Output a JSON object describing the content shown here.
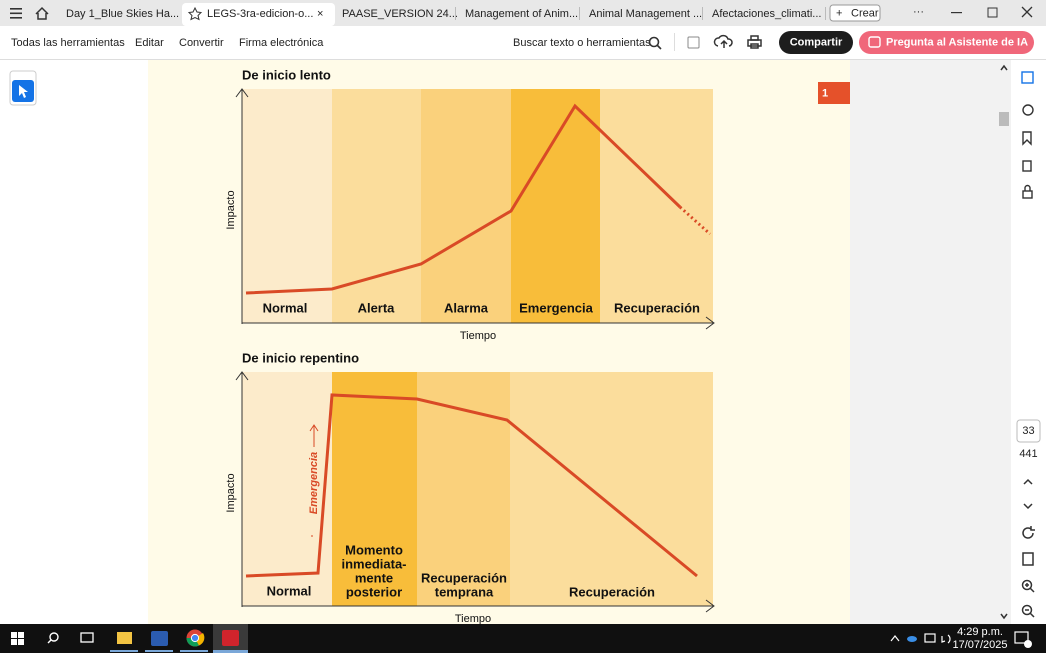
{
  "tabs": [
    "Day 1_Blue Skies Ha...",
    "LEGS-3ra-edicion-o...",
    "PAASE_VERSION 24...",
    "Management of Anim...",
    "Animal Management ...",
    "Afectaciones_climati..."
  ],
  "new_tab": "Crear",
  "toolbar": {
    "tools": [
      "Todas las herramientas",
      "Editar",
      "Convertir",
      "Firma electrónica"
    ],
    "search": "Buscar texto o herramientas",
    "share": "Compartir",
    "ai": "Pregunta al Asistente de IA"
  },
  "page_badge": "1",
  "diagrams": [
    {
      "title": "De inicio lento",
      "y_label": "Impacto",
      "x_label": "Tiempo",
      "phases": [
        [
          "Normal"
        ],
        [
          "Alerta"
        ],
        [
          "Alarma"
        ],
        [
          "Emergencia"
        ],
        [
          "Recuperación"
        ]
      ]
    },
    {
      "title": "De inicio repentino",
      "y_label": "Impacto",
      "x_label": "Tiempo",
      "annotation": "Emergencia",
      "phases": [
        [
          "Normal"
        ],
        [
          "Momento",
          "inmediata-",
          "mente",
          "posterior"
        ],
        [
          "Recuperación",
          "temprana"
        ],
        [
          "Recuperación"
        ]
      ]
    }
  ],
  "page_nav": {
    "current": 33,
    "total": 441
  },
  "taskbar": {
    "time": "4:29 p.m.",
    "date": "17/07/2025"
  }
}
